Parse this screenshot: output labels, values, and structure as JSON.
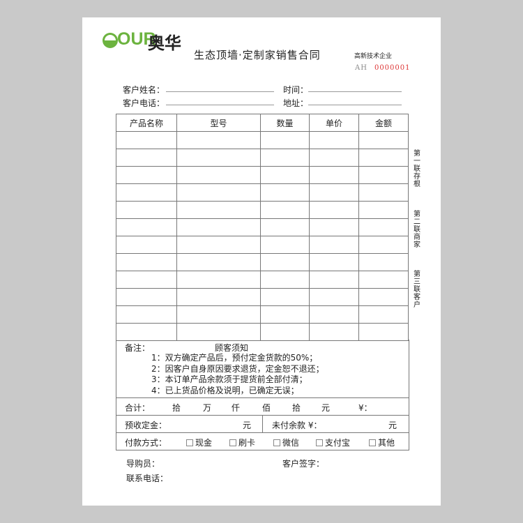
{
  "logo": {
    "latin": "OUR",
    "chinese": "奥华",
    "color": "#6cb33f"
  },
  "title": "生态顶墙·定制家销售合同",
  "tag": "高新技术企业",
  "serial": {
    "prefix": "AH",
    "number": "0000001"
  },
  "fields": {
    "name": "客户姓名：",
    "time": "时间：",
    "phone": "客户电话：",
    "address": "地址："
  },
  "table": {
    "headers": [
      "产品名称",
      "型号",
      "数量",
      "单价",
      "金额"
    ],
    "row_count": 12
  },
  "notes": {
    "label": "备注：",
    "heading": "顾客须知",
    "items": [
      "1：双方确定产品后，预付定金货款的50%；",
      "2：因客户自身原因要求退货，定金恕不退还；",
      "3：本订单产品余款须于提货前全部付清；",
      "4：已上货品价格及说明，已确定无误；"
    ]
  },
  "total": {
    "label": "合计：",
    "units": [
      "拾",
      "万",
      "仟",
      "佰",
      "拾",
      "元"
    ],
    "yen": "¥："
  },
  "deposit": {
    "label": "预收定金：",
    "unit": "元",
    "unpaid": "未付余款 ¥：",
    "unpaid_unit": "元"
  },
  "payment": {
    "label": "付款方式：",
    "options": [
      "现金",
      "刷卡",
      "微信",
      "支付宝",
      "其他"
    ]
  },
  "footer": {
    "guide": "导购员：",
    "sign": "客户签字：",
    "contact": "联系电话："
  },
  "copies": [
    "第一联存根",
    "第二联商家",
    "第三联客户"
  ]
}
